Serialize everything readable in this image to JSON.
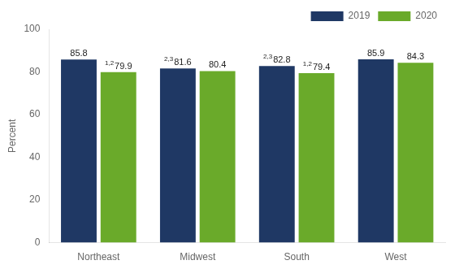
{
  "chart_data": {
    "type": "bar",
    "categories": [
      "Northeast",
      "Midwest",
      "South",
      "West"
    ],
    "series": [
      {
        "name": "2019",
        "color": "#1f3864",
        "values": [
          85.8,
          81.6,
          82.8,
          85.9
        ],
        "superscripts": [
          null,
          "2,3",
          "2,3",
          null
        ]
      },
      {
        "name": "2020",
        "color": "#6aaa2a",
        "values": [
          79.9,
          80.4,
          79.4,
          84.3
        ],
        "superscripts": [
          "1,2",
          null,
          "1,2",
          null
        ]
      }
    ],
    "y_label": "Percent",
    "ylim": [
      0,
      100
    ],
    "yticks": [
      0,
      20,
      40,
      60,
      80,
      100
    ],
    "grid": false,
    "legend": "top right",
    "data_labels": true
  }
}
